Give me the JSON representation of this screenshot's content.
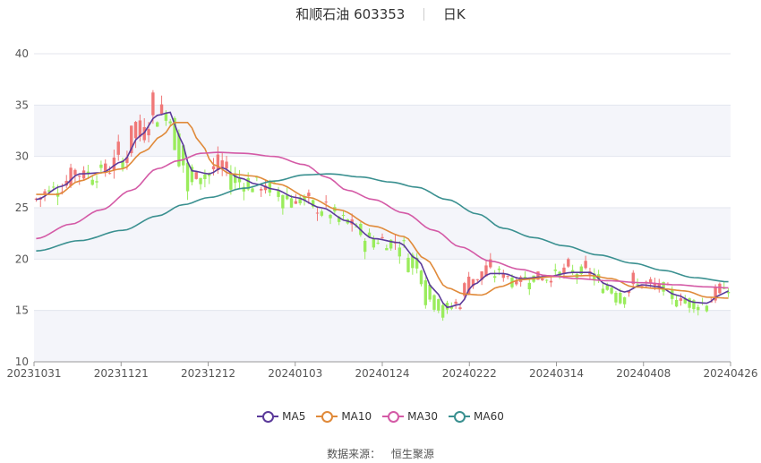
{
  "chart_data": {
    "type": "candlestick",
    "stock_name": "和顺石油",
    "stock_code": "603353",
    "period": "日K",
    "ylim": [
      10,
      40
    ],
    "y_ticks": [
      10,
      15,
      20,
      25,
      30,
      35,
      40
    ],
    "x_ticks": [
      "20231031",
      "20231121",
      "20231212",
      "20240103",
      "20240124",
      "20240222",
      "20240314",
      "20240408",
      "20240426"
    ],
    "legend": [
      {
        "name": "MA5",
        "color": "#5b3a9a"
      },
      {
        "name": "MA10",
        "color": "#e08a3a"
      },
      {
        "name": "MA30",
        "color": "#d45aa6"
      },
      {
        "name": "MA60",
        "color": "#3a9090"
      }
    ],
    "up_color": "#f07878",
    "down_color": "#9aec5c",
    "grid": true,
    "legend_position": "bottom",
    "source_label": "数据来源：",
    "source_value": "恒生聚源",
    "series": [
      {
        "name": "MA5",
        "anchors": [
          [
            0,
            25.8
          ],
          [
            6,
            27.1
          ],
          [
            10,
            28.3
          ],
          [
            15,
            28.4
          ],
          [
            20,
            29.5
          ],
          [
            24,
            32.0
          ],
          [
            28,
            34.0
          ],
          [
            31,
            34.3
          ],
          [
            33,
            32.0
          ],
          [
            36,
            28.6
          ],
          [
            40,
            28.3
          ],
          [
            43,
            28.9
          ],
          [
            47,
            27.9
          ],
          [
            51,
            27.3
          ],
          [
            55,
            26.8
          ],
          [
            60,
            26.0
          ],
          [
            66,
            25.0
          ],
          [
            72,
            23.7
          ],
          [
            78,
            22.0
          ],
          [
            84,
            21.6
          ],
          [
            88,
            20.0
          ],
          [
            92,
            17.0
          ],
          [
            95,
            15.3
          ],
          [
            98,
            15.6
          ],
          [
            101,
            17.5
          ],
          [
            105,
            18.6
          ],
          [
            108,
            18.6
          ],
          [
            112,
            18.1
          ],
          [
            118,
            18.3
          ],
          [
            124,
            18.7
          ],
          [
            128,
            18.7
          ],
          [
            132,
            17.5
          ],
          [
            136,
            16.8
          ],
          [
            140,
            17.5
          ],
          [
            144,
            17.3
          ],
          [
            148,
            16.5
          ],
          [
            152,
            15.8
          ],
          [
            155,
            15.7
          ],
          [
            158,
            16.5
          ],
          [
            160,
            16.9
          ]
        ]
      },
      {
        "name": "MA10",
        "anchors": [
          [
            0,
            26.3
          ],
          [
            5,
            26.3
          ],
          [
            10,
            27.6
          ],
          [
            15,
            28.4
          ],
          [
            20,
            28.8
          ],
          [
            25,
            30.5
          ],
          [
            29,
            32.0
          ],
          [
            32,
            33.3
          ],
          [
            35,
            33.3
          ],
          [
            38,
            31.3
          ],
          [
            41,
            29.2
          ],
          [
            45,
            28.3
          ],
          [
            50,
            28.1
          ],
          [
            56,
            27.3
          ],
          [
            63,
            26.0
          ],
          [
            70,
            24.8
          ],
          [
            78,
            23.2
          ],
          [
            85,
            22.2
          ],
          [
            90,
            20.0
          ],
          [
            95,
            17.2
          ],
          [
            99,
            16.6
          ],
          [
            103,
            16.5
          ],
          [
            107,
            17.3
          ],
          [
            112,
            18.0
          ],
          [
            120,
            18.3
          ],
          [
            128,
            18.4
          ],
          [
            133,
            18.1
          ],
          [
            138,
            17.3
          ],
          [
            145,
            17.1
          ],
          [
            150,
            16.9
          ],
          [
            155,
            16.3
          ],
          [
            160,
            16.2
          ]
        ]
      },
      {
        "name": "MA30",
        "anchors": [
          [
            0,
            22.0
          ],
          [
            8,
            23.4
          ],
          [
            15,
            24.8
          ],
          [
            22,
            26.7
          ],
          [
            28,
            28.8
          ],
          [
            33,
            29.6
          ],
          [
            38,
            30.3
          ],
          [
            42,
            30.4
          ],
          [
            48,
            30.3
          ],
          [
            55,
            30.0
          ],
          [
            62,
            29.2
          ],
          [
            67,
            28.0
          ],
          [
            72,
            26.7
          ],
          [
            78,
            25.8
          ],
          [
            85,
            24.5
          ],
          [
            92,
            22.8
          ],
          [
            98,
            21.2
          ],
          [
            105,
            19.8
          ],
          [
            112,
            19.0
          ],
          [
            118,
            18.4
          ],
          [
            125,
            18.1
          ],
          [
            132,
            17.9
          ],
          [
            140,
            17.7
          ],
          [
            148,
            17.5
          ],
          [
            155,
            17.3
          ],
          [
            160,
            17.2
          ]
        ]
      },
      {
        "name": "MA60",
        "anchors": [
          [
            0,
            20.8
          ],
          [
            10,
            21.8
          ],
          [
            20,
            22.8
          ],
          [
            28,
            24.2
          ],
          [
            34,
            25.3
          ],
          [
            40,
            26.0
          ],
          [
            48,
            26.9
          ],
          [
            55,
            27.6
          ],
          [
            62,
            28.2
          ],
          [
            68,
            28.3
          ],
          [
            75,
            28.0
          ],
          [
            82,
            27.5
          ],
          [
            88,
            27.0
          ],
          [
            95,
            25.8
          ],
          [
            102,
            24.4
          ],
          [
            108,
            23.0
          ],
          [
            115,
            22.1
          ],
          [
            122,
            21.3
          ],
          [
            130,
            20.4
          ],
          [
            138,
            19.6
          ],
          [
            145,
            18.9
          ],
          [
            152,
            18.2
          ],
          [
            160,
            17.8
          ]
        ]
      }
    ]
  }
}
